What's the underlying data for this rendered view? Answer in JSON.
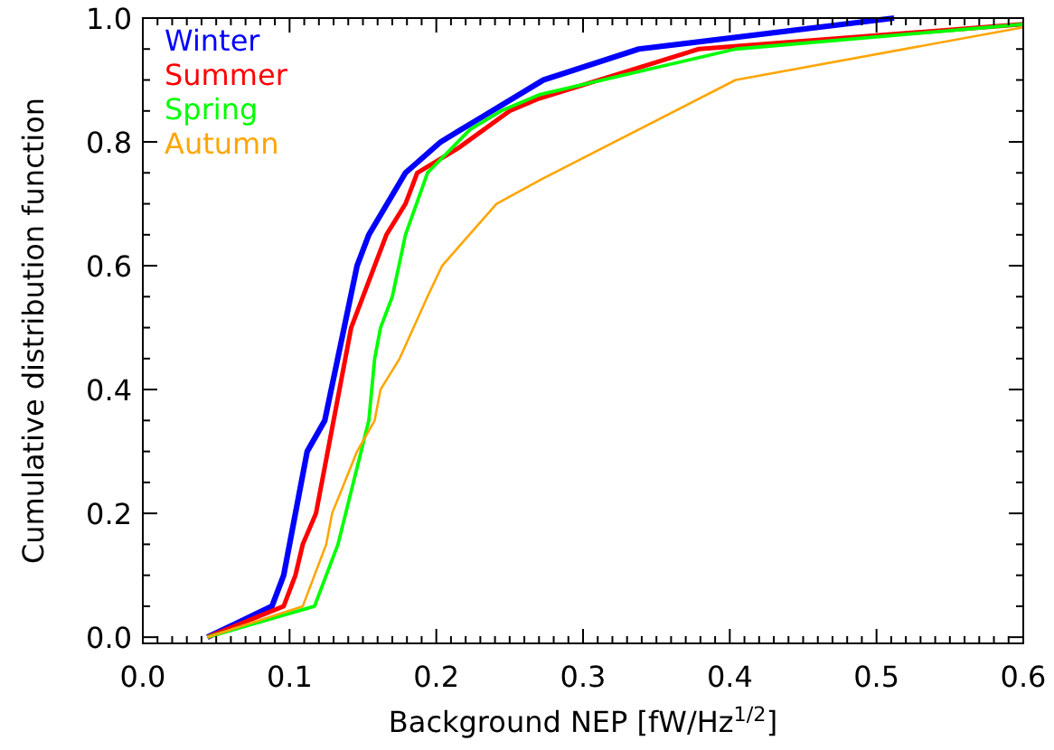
{
  "chart_data": {
    "type": "line",
    "xlabel": "Background NEP [fW/Hz$^{1/2}$]",
    "ylabel": "Cumulative distribution function",
    "xlim": [
      0,
      0.6
    ],
    "ylim": [
      -0.01,
      1.0
    ],
    "xticks": [
      {
        "value": 0,
        "label": "0.0"
      },
      {
        "value": 0.01,
        "label": null
      },
      {
        "value": 0.02,
        "label": null
      },
      {
        "value": 0.03,
        "label": null
      },
      {
        "value": 0.04,
        "label": null
      },
      {
        "value": 0.05,
        "label": null
      },
      {
        "value": 0.06,
        "label": null
      },
      {
        "value": 0.07,
        "label": null
      },
      {
        "value": 0.08,
        "label": null
      },
      {
        "value": 0.09,
        "label": null
      },
      0.1,
      {
        "value": 0.11,
        "label": null
      },
      {
        "value": 0.12,
        "label": null
      },
      {
        "value": 0.13,
        "label": null
      },
      {
        "value": 0.14,
        "label": null
      },
      {
        "value": 0.15,
        "label": null
      },
      {
        "value": 0.16,
        "label": null
      },
      {
        "value": 0.17,
        "label": null
      },
      {
        "value": 0.18,
        "label": null
      },
      {
        "value": 0.19,
        "label": null
      },
      0.2,
      {
        "value": 0.21,
        "label": null
      },
      {
        "value": 0.22,
        "label": null
      },
      {
        "value": 0.23,
        "label": null
      },
      {
        "value": 0.24,
        "label": null
      },
      {
        "value": 0.25,
        "label": null
      },
      {
        "value": 0.26,
        "label": null
      },
      {
        "value": 0.27,
        "label": null
      },
      {
        "value": 0.28,
        "label": null
      },
      {
        "value": 0.29,
        "label": null
      },
      0.3,
      {
        "value": 0.31,
        "label": null
      },
      {
        "value": 0.32,
        "label": null
      },
      {
        "value": 0.33,
        "label": null
      },
      {
        "value": 0.34,
        "label": null
      },
      {
        "value": 0.35,
        "label": null
      },
      {
        "value": 0.36,
        "label": null
      },
      {
        "value": 0.37,
        "label": null
      },
      {
        "value": 0.38,
        "label": null
      },
      {
        "value": 0.39,
        "label": null
      },
      0.4,
      {
        "value": 0.41,
        "label": null
      },
      {
        "value": 0.42,
        "label": null
      },
      {
        "value": 0.43,
        "label": null
      },
      {
        "value": 0.44,
        "label": null
      },
      {
        "value": 0.45,
        "label": null
      },
      {
        "value": 0.46,
        "label": null
      },
      {
        "value": 0.47,
        "label": null
      },
      {
        "value": 0.48,
        "label": null
      },
      {
        "value": 0.49,
        "label": null
      },
      0.5,
      {
        "value": 0.51,
        "label": null
      },
      {
        "value": 0.52,
        "label": null
      },
      {
        "value": 0.53,
        "label": null
      },
      {
        "value": 0.54,
        "label": null
      },
      {
        "value": 0.55,
        "label": null
      },
      {
        "value": 0.56,
        "label": null
      },
      {
        "value": 0.57,
        "label": null
      },
      {
        "value": 0.58,
        "label": null
      },
      {
        "value": 0.59,
        "label": null
      },
      0.6
    ],
    "yticks": [
      {
        "value": 0,
        "label": "0.0"
      },
      {
        "value": 0.05,
        "label": null
      },
      0.2,
      {
        "value": 0.1,
        "label": null
      },
      {
        "value": 0.15,
        "label": null
      },
      {
        "value": 0.25,
        "label": null
      },
      {
        "value": 0.3,
        "label": null
      },
      0.4,
      {
        "value": 0.35,
        "label": null
      },
      {
        "value": 0.45,
        "label": null
      },
      {
        "value": 0.5,
        "label": null
      },
      0.6,
      {
        "value": 0.55,
        "label": null
      },
      {
        "value": 0.65,
        "label": null
      },
      {
        "value": 0.7,
        "label": null
      },
      0.8,
      {
        "value": 0.75,
        "label": null
      },
      {
        "value": 0.85,
        "label": null
      },
      {
        "value": 0.9,
        "label": null
      },
      {
        "value": 0.95,
        "label": null
      },
      {
        "value": 1.0,
        "label": "1.0"
      }
    ],
    "legend": "top left",
    "grid": false,
    "series": [
      {
        "name": "Winter",
        "color": "#0000ff",
        "x": [
          0.044,
          0.088,
          0.096,
          0.112,
          0.124,
          0.146,
          0.154,
          0.179,
          0.203,
          0.231,
          0.273,
          0.338,
          0.512
        ],
        "values": [
          0,
          0.05,
          0.1,
          0.3,
          0.35,
          0.6,
          0.65,
          0.75,
          0.8,
          0.84,
          0.9,
          0.95,
          1.0
        ]
      },
      {
        "name": "Summer",
        "color": "#ff0000",
        "x": [
          0.044,
          0.096,
          0.104,
          0.109,
          0.118,
          0.142,
          0.166,
          0.179,
          0.187,
          0.215,
          0.25,
          0.27,
          0.379,
          0.6
        ],
        "values": [
          0,
          0.05,
          0.1,
          0.15,
          0.2,
          0.5,
          0.65,
          0.7,
          0.75,
          0.79,
          0.85,
          0.87,
          0.95,
          0.99
        ]
      },
      {
        "name": "Spring",
        "color": "#00ff00",
        "x": [
          0.044,
          0.117,
          0.133,
          0.154,
          0.158,
          0.162,
          0.17,
          0.179,
          0.194,
          0.223,
          0.244,
          0.27,
          0.404,
          0.6
        ],
        "values": [
          0,
          0.05,
          0.15,
          0.35,
          0.45,
          0.5,
          0.55,
          0.65,
          0.75,
          0.82,
          0.85,
          0.876,
          0.95,
          0.99
        ]
      },
      {
        "name": "Autumn",
        "color": "#ffa500",
        "x": [
          0.044,
          0.109,
          0.125,
          0.129,
          0.146,
          0.158,
          0.162,
          0.175,
          0.194,
          0.204,
          0.241,
          0.272,
          0.404,
          0.6
        ],
        "values": [
          0,
          0.05,
          0.15,
          0.2,
          0.3,
          0.35,
          0.4,
          0.45,
          0.55,
          0.6,
          0.7,
          0.74,
          0.9,
          0.985
        ]
      }
    ]
  }
}
